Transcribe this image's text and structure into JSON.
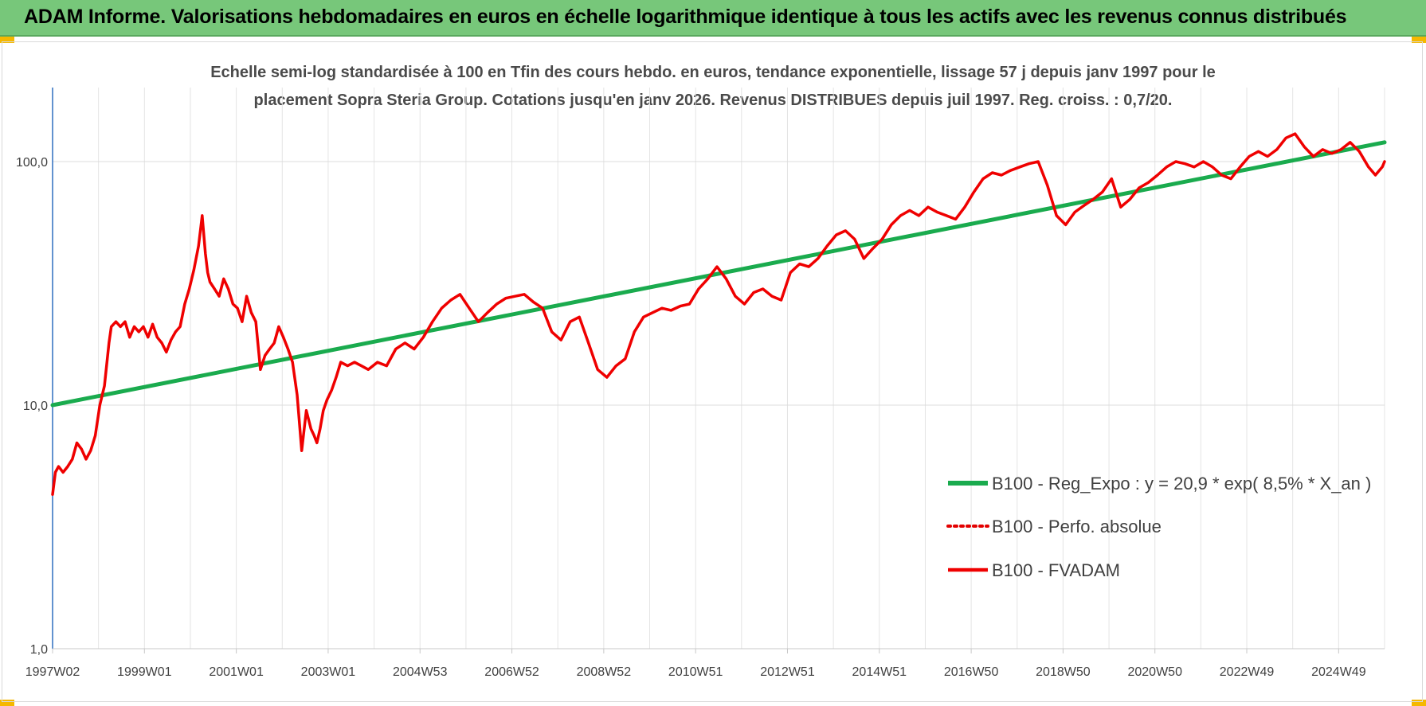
{
  "header": {
    "title": "ADAM Informe. Valorisations hebdomadaires en euros en échelle logarithmique identique à tous les actifs avec les revenus connus distribués"
  },
  "chart_data": {
    "type": "line",
    "title_line1": "Echelle semi-log standardisée à 100 en Tfin des cours hebdo. en euros, tendance exponentielle, lissage 57 j depuis janv 1997 pour le",
    "title_line2": "placement Sopra Steria Group. Cotations jusqu'en janv 2026. Revenus DISTRIBUES depuis juil 1997. Reg. croiss. : 0,7/20.",
    "xlabel": "",
    "ylabel": "",
    "y_scale": "log",
    "ylim": [
      1,
      180
    ],
    "y_ticks": [
      "1,0",
      "10,0",
      "100,0"
    ],
    "x_ticks": [
      "1997W02",
      "1999W01",
      "2001W01",
      "2003W01",
      "2004W53",
      "2006W52",
      "2008W52",
      "2010W51",
      "2012W51",
      "2014W51",
      "2016W50",
      "2018W50",
      "2020W50",
      "2022W49",
      "2024W49"
    ],
    "xlim": [
      1997.02,
      2026.05
    ],
    "grid": true,
    "legend_position": "lower-right",
    "series": [
      {
        "name": "B100 - Reg_Expo : y = 20,9 * exp( 8,5% *  X_an )",
        "style": "solid",
        "color": "#1aab4e",
        "x": [
          1997.02,
          2026.05
        ],
        "y": [
          10.0,
          120.0
        ]
      },
      {
        "name": "B100 - Perfo. absolue",
        "style": "dotted",
        "color": "#e30000",
        "x": [],
        "y": []
      },
      {
        "name": "B100 - FVADAM",
        "style": "solid",
        "color": "#ef0000",
        "x": [
          1997.02,
          1997.08,
          1997.15,
          1997.25,
          1997.35,
          1997.45,
          1997.55,
          1997.65,
          1997.75,
          1997.85,
          1997.95,
          1998.05,
          1998.15,
          1998.25,
          1998.3,
          1998.4,
          1998.5,
          1998.6,
          1998.7,
          1998.8,
          1998.9,
          1999.0,
          1999.1,
          1999.2,
          1999.3,
          1999.4,
          1999.5,
          1999.6,
          1999.7,
          1999.8,
          1999.9,
          2000.0,
          2000.1,
          2000.2,
          2000.28,
          2000.35,
          2000.4,
          2000.45,
          2000.55,
          2000.65,
          2000.75,
          2000.85,
          2000.95,
          2001.05,
          2001.15,
          2001.25,
          2001.35,
          2001.45,
          2001.55,
          2001.65,
          2001.75,
          2001.85,
          2001.95,
          2002.05,
          2002.15,
          2002.25,
          2002.35,
          2002.45,
          2002.55,
          2002.65,
          2002.72,
          2002.78,
          2002.85,
          2002.92,
          2003.0,
          2003.1,
          2003.2,
          2003.3,
          2003.45,
          2003.6,
          2003.75,
          2003.9,
          2004.1,
          2004.3,
          2004.5,
          2004.7,
          2004.9,
          2005.1,
          2005.3,
          2005.5,
          2005.7,
          2005.9,
          2006.1,
          2006.3,
          2006.5,
          2006.7,
          2006.9,
          2007.1,
          2007.3,
          2007.5,
          2007.7,
          2007.9,
          2008.1,
          2008.3,
          2008.5,
          2008.7,
          2008.9,
          2009.1,
          2009.3,
          2009.5,
          2009.7,
          2009.9,
          2010.1,
          2010.3,
          2010.5,
          2010.7,
          2010.9,
          2011.1,
          2011.3,
          2011.5,
          2011.7,
          2011.9,
          2012.1,
          2012.3,
          2012.5,
          2012.7,
          2012.9,
          2013.1,
          2013.3,
          2013.5,
          2013.7,
          2013.9,
          2014.1,
          2014.3,
          2014.5,
          2014.7,
          2014.9,
          2015.1,
          2015.3,
          2015.5,
          2015.7,
          2015.9,
          2016.1,
          2016.3,
          2016.5,
          2016.7,
          2016.9,
          2017.1,
          2017.3,
          2017.5,
          2017.7,
          2017.9,
          2018.1,
          2018.3,
          2018.5,
          2018.7,
          2018.9,
          2019.1,
          2019.3,
          2019.5,
          2019.7,
          2019.9,
          2020.1,
          2020.3,
          2020.5,
          2020.7,
          2020.9,
          2021.1,
          2021.3,
          2021.5,
          2021.7,
          2021.9,
          2022.1,
          2022.3,
          2022.5,
          2022.7,
          2022.9,
          2023.1,
          2023.3,
          2023.5,
          2023.7,
          2023.9,
          2024.1,
          2024.3,
          2024.5,
          2024.7,
          2024.9,
          2025.1,
          2025.3,
          2025.5,
          2025.7,
          2025.85,
          2026.0,
          2026.05
        ],
        "y": [
          4.3,
          5.3,
          5.6,
          5.3,
          5.6,
          6.0,
          7.0,
          6.6,
          6.0,
          6.5,
          7.5,
          10.0,
          12.0,
          18.0,
          21.0,
          22.0,
          21.0,
          22.0,
          19.0,
          21.0,
          20.0,
          21.0,
          19.0,
          21.5,
          19.0,
          18.0,
          16.5,
          18.5,
          20.0,
          21.0,
          26.0,
          30.0,
          36.0,
          45.0,
          60.0,
          42.0,
          35.0,
          32.0,
          30.0,
          28.0,
          33.0,
          30.0,
          26.0,
          25.0,
          22.0,
          28.0,
          24.0,
          22.0,
          14.0,
          16.0,
          17.0,
          18.0,
          21.0,
          19.0,
          17.0,
          15.0,
          11.0,
          6.5,
          9.5,
          8.0,
          7.5,
          7.0,
          8.0,
          9.5,
          10.5,
          11.5,
          13.0,
          15.0,
          14.5,
          15.0,
          14.5,
          14.0,
          15.0,
          14.5,
          17.0,
          18.0,
          17.0,
          19.0,
          22.0,
          25.0,
          27.0,
          28.5,
          25.0,
          22.0,
          24.0,
          26.0,
          27.5,
          28.0,
          28.5,
          26.5,
          25.0,
          20.0,
          18.5,
          22.0,
          23.0,
          18.0,
          14.0,
          13.0,
          14.5,
          15.5,
          20.0,
          23.0,
          24.0,
          25.0,
          24.5,
          25.5,
          26.0,
          30.0,
          33.0,
          37.0,
          33.0,
          28.0,
          26.0,
          29.0,
          30.0,
          28.0,
          27.0,
          35.0,
          38.0,
          37.0,
          40.0,
          45.0,
          50.0,
          52.0,
          48.0,
          40.0,
          44.0,
          48.0,
          55.0,
          60.0,
          63.0,
          60.0,
          65.0,
          62.0,
          60.0,
          58.0,
          65.0,
          75.0,
          85.0,
          90.0,
          88.0,
          92.0,
          95.0,
          98.0,
          100.0,
          80.0,
          60.0,
          55.0,
          62.0,
          66.0,
          70.0,
          75.0,
          85.0,
          65.0,
          70.0,
          78.0,
          82.0,
          88.0,
          95.0,
          100.0,
          98.0,
          95.0,
          100.0,
          95.0,
          88.0,
          85.0,
          95.0,
          105.0,
          110.0,
          105.0,
          112.0,
          125.0,
          130.0,
          115.0,
          105.0,
          112.0,
          108.0,
          112.0,
          120.0,
          110.0,
          95.0,
          88.0,
          95.0,
          100.0
        ]
      }
    ]
  }
}
